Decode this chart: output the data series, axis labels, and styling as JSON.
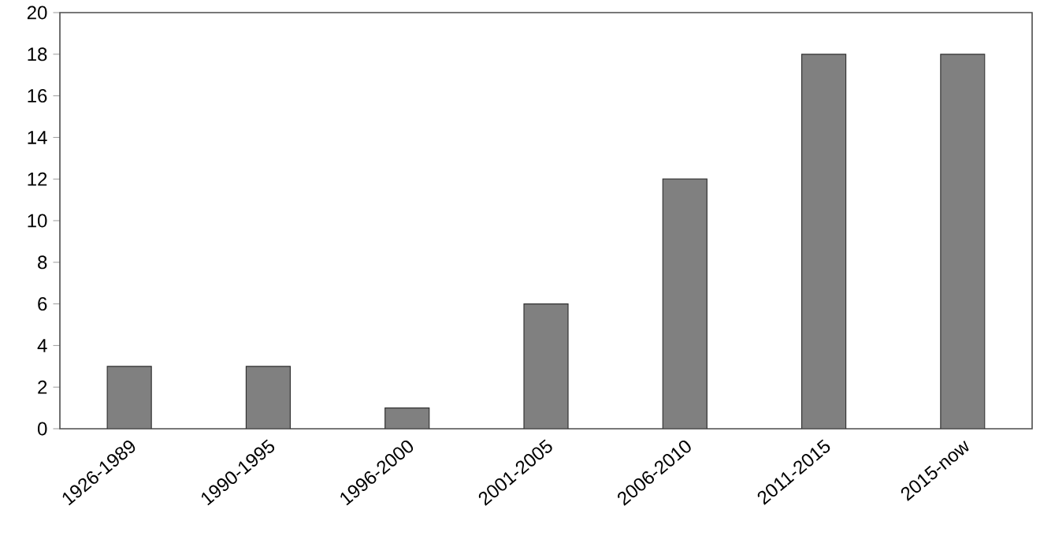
{
  "chart_data": {
    "type": "bar",
    "categories": [
      "1926-1989",
      "1990-1995",
      "1996-2000",
      "2001-2005",
      "2006-2010",
      "2011-2015",
      "2015-now"
    ],
    "values": [
      3,
      3,
      1,
      6,
      12,
      18,
      18
    ],
    "color": "#808080",
    "ylim": [
      0,
      20
    ],
    "yticks": [
      0,
      2,
      4,
      6,
      8,
      10,
      12,
      14,
      16,
      18,
      20
    ],
    "grid": false
  }
}
